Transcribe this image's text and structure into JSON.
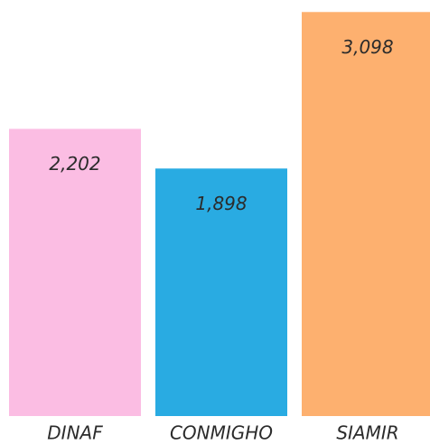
{
  "chart_data": {
    "type": "bar",
    "categories": [
      "DINAF",
      "CONMIGHO",
      "SIAMIR"
    ],
    "values": [
      2202,
      1898,
      3098
    ],
    "value_labels": [
      "2,202",
      "1,898",
      "3,098"
    ],
    "colors": [
      "#fbbde3",
      "#29abe2",
      "#fdb06f"
    ],
    "ylim": [
      0,
      3100
    ]
  }
}
